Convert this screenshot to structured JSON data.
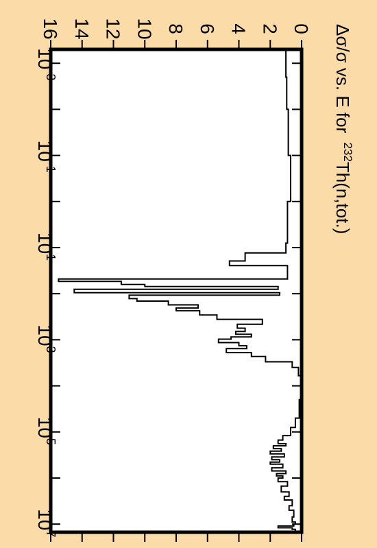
{
  "colors": {
    "background": "#fbdca8",
    "plot_area": "#ffffff",
    "line": "#000000"
  },
  "chart_data": {
    "type": "line",
    "title": "Δσ/σ vs. E for 232Th(n,tot.)",
    "title_parts": {
      "prefix": "Δσ/σ vs. E for ",
      "superscript": "232",
      "suffix": "Th(n,tot.)"
    },
    "orientation": "rotated 90° clockwise (energy axis runs down the page, value axis runs right to left)",
    "xlabel": "",
    "ylabel": "",
    "x_scale": "log",
    "xlim": [
      0.0005,
      15000000
    ],
    "ylim": [
      0,
      16
    ],
    "x_ticks": [
      {
        "value": 0.001,
        "base": "10",
        "exp": "-3"
      },
      {
        "value": 0.1,
        "base": "10",
        "exp": "-1"
      },
      {
        "value": 10,
        "base": "10",
        "exp": "1"
      },
      {
        "value": 1000,
        "base": "10",
        "exp": "3"
      },
      {
        "value": 100000,
        "base": "10",
        "exp": "5"
      },
      {
        "value": 10000000,
        "base": "10",
        "exp": "7"
      }
    ],
    "y_ticks": [
      0,
      2,
      4,
      6,
      8,
      10,
      12,
      14,
      16
    ],
    "grid": false,
    "legend": "none",
    "series": [
      {
        "style": "step",
        "points": [
          [
            0.0005,
            1.0
          ],
          [
            0.002,
            0.95
          ],
          [
            0.01,
            0.85
          ],
          [
            0.1,
            0.7
          ],
          [
            1,
            0.9
          ],
          [
            8,
            1.0
          ],
          [
            12,
            1.0
          ],
          [
            13,
            3.6
          ],
          [
            19,
            3.6
          ],
          [
            19.5,
            4.6
          ],
          [
            24,
            4.6
          ],
          [
            24.5,
            0.9
          ],
          [
            45,
            0.9
          ],
          [
            48,
            15.5
          ],
          [
            52,
            15.5
          ],
          [
            54,
            11.5
          ],
          [
            60,
            11.5
          ],
          [
            63,
            10.0
          ],
          [
            68,
            10.0
          ],
          [
            70,
            1.5
          ],
          [
            78,
            1.5
          ],
          [
            80,
            14.5
          ],
          [
            92,
            14.5
          ],
          [
            95,
            1.4
          ],
          [
            105,
            1.4
          ],
          [
            108,
            11.0
          ],
          [
            125,
            11.0
          ],
          [
            128,
            10.5
          ],
          [
            140,
            10.5
          ],
          [
            145,
            8.5
          ],
          [
            170,
            8.5
          ],
          [
            175,
            6.6
          ],
          [
            200,
            6.6
          ],
          [
            205,
            8.0
          ],
          [
            230,
            8.0
          ],
          [
            235,
            6.5
          ],
          [
            280,
            6.5
          ],
          [
            290,
            5.4
          ],
          [
            350,
            5.4
          ],
          [
            360,
            2.5
          ],
          [
            450,
            2.5
          ],
          [
            460,
            4.1
          ],
          [
            550,
            4.1
          ],
          [
            560,
            3.6
          ],
          [
            650,
            3.6
          ],
          [
            660,
            4.2
          ],
          [
            750,
            4.2
          ],
          [
            760,
            3.2
          ],
          [
            850,
            3.2
          ],
          [
            870,
            4.5
          ],
          [
            950,
            4.5
          ],
          [
            970,
            5.3
          ],
          [
            1100,
            5.3
          ],
          [
            1150,
            4.0
          ],
          [
            1300,
            4.0
          ],
          [
            1350,
            3.5
          ],
          [
            1500,
            3.5
          ],
          [
            1550,
            4.8
          ],
          [
            1800,
            4.8
          ],
          [
            1900,
            3.2
          ],
          [
            2200,
            3.2
          ],
          [
            2300,
            2.3
          ],
          [
            2800,
            2.3
          ],
          [
            3000,
            0.6
          ],
          [
            4000,
            0.2
          ],
          [
            6000,
            0.0
          ],
          [
            10000,
            0.05
          ],
          [
            20000,
            0.15
          ],
          [
            50000,
            0.4
          ],
          [
            80000,
            0.7
          ],
          [
            120000,
            1.2
          ],
          [
            150000,
            1.5
          ],
          [
            180000,
            1.0
          ],
          [
            200000,
            1.8
          ],
          [
            230000,
            1.3
          ],
          [
            260000,
            2.0
          ],
          [
            300000,
            1.1
          ],
          [
            350000,
            1.9
          ],
          [
            400000,
            1.4
          ],
          [
            450000,
            2.0
          ],
          [
            500000,
            1.2
          ],
          [
            600000,
            1.9
          ],
          [
            700000,
            1.0
          ],
          [
            800000,
            1.6
          ],
          [
            900000,
            1.2
          ],
          [
            1000000,
            1.5
          ],
          [
            1200000,
            0.9
          ],
          [
            1500000,
            1.3
          ],
          [
            2000000,
            0.8
          ],
          [
            2500000,
            1.1
          ],
          [
            3000000,
            0.6
          ],
          [
            4000000,
            0.8
          ],
          [
            5000000,
            0.5
          ],
          [
            7000000,
            0.6
          ],
          [
            9000000,
            0.4
          ],
          [
            10000000,
            0.5
          ],
          [
            11000000,
            1.5
          ],
          [
            12000000,
            0.6
          ],
          [
            13000000,
            0.4
          ],
          [
            15000000,
            0.6
          ]
        ]
      }
    ]
  }
}
